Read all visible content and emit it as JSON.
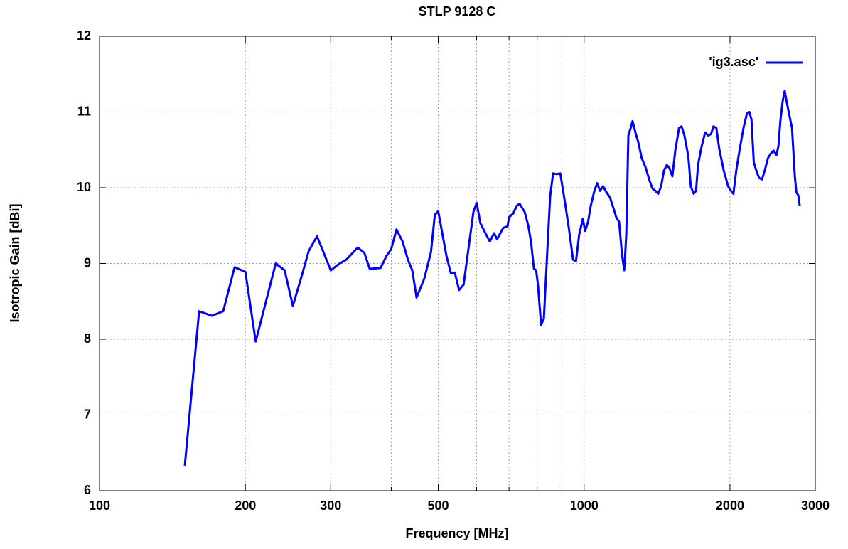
{
  "chart_data": {
    "type": "line",
    "title": "STLP 9128 C",
    "x_label": "Frequency [MHz]",
    "y_label": "Isotropic Gain [dBi]",
    "log_x": true,
    "grid": true,
    "legend": "top-right",
    "xlim": [
      100,
      3000
    ],
    "ylim": [
      6,
      12
    ],
    "xticks": [
      100,
      200,
      300,
      500,
      1000,
      2000,
      3000
    ],
    "minor_xticks": [
      400,
      600,
      700,
      800,
      900
    ],
    "yticks": [
      6,
      7,
      8,
      9,
      10,
      11,
      12
    ],
    "series": [
      {
        "name": "'ig3.asc'",
        "color": "#0000ff",
        "x": [
          150,
          160.5,
          170.5,
          180,
          190,
          200,
          210,
          231,
          241,
          250.6,
          262,
          270,
          281,
          300,
          313,
          323,
          341,
          352,
          361,
          380,
          391,
          400,
          410,
          422,
          433,
          442,
          451,
          468,
          483,
          492,
          500,
          520,
          531,
          541,
          552,
          564,
          591,
          600,
          611,
          628,
          639,
          652,
          661,
          681,
          695,
          700,
          714,
          726,
          736,
          754,
          767,
          777,
          788,
          796,
          803,
          815,
          826,
          840,
          851,
          863,
          877,
          893,
          911,
          930,
          949,
          962,
          977,
          994,
          1005,
          1019,
          1033,
          1050,
          1064,
          1079,
          1094,
          1112,
          1131,
          1146,
          1165,
          1181,
          1197,
          1210,
          1222,
          1234,
          1251,
          1259,
          1276,
          1294,
          1315,
          1339,
          1365,
          1384,
          1403,
          1422,
          1442,
          1462,
          1482,
          1500,
          1521,
          1542,
          1570,
          1589,
          1611,
          1641,
          1660,
          1683,
          1702,
          1718,
          1746,
          1777,
          1803,
          1828,
          1849,
          1875,
          1901,
          1941,
          1982,
          2009,
          2033,
          2061,
          2097,
          2133,
          2168,
          2193,
          2215,
          2239,
          2266,
          2297,
          2329,
          2362,
          2395,
          2427,
          2460,
          2494,
          2518,
          2541,
          2570,
          2594,
          2612,
          2648,
          2685,
          2722,
          2741,
          2767,
          2786
        ],
        "values": [
          6.33,
          8.37,
          8.31,
          8.37,
          8.95,
          8.89,
          7.97,
          9.0,
          8.91,
          8.44,
          8.86,
          9.16,
          9.36,
          8.91,
          9.0,
          9.05,
          9.21,
          9.14,
          8.93,
          8.94,
          9.1,
          9.19,
          9.45,
          9.29,
          9.05,
          8.91,
          8.55,
          8.8,
          9.15,
          9.64,
          9.69,
          9.1,
          8.87,
          8.88,
          8.65,
          8.72,
          9.68,
          9.8,
          9.53,
          9.38,
          9.29,
          9.4,
          9.32,
          9.47,
          9.49,
          9.61,
          9.66,
          9.76,
          9.79,
          9.68,
          9.5,
          9.29,
          8.93,
          8.91,
          8.72,
          8.19,
          8.27,
          9.19,
          9.89,
          10.19,
          10.18,
          10.19,
          9.85,
          9.47,
          9.05,
          9.03,
          9.38,
          9.59,
          9.43,
          9.55,
          9.77,
          9.96,
          10.06,
          9.96,
          10.02,
          9.94,
          9.87,
          9.76,
          9.61,
          9.55,
          9.12,
          8.91,
          9.38,
          10.69,
          10.81,
          10.88,
          10.73,
          10.6,
          10.39,
          10.27,
          10.09,
          9.99,
          9.96,
          9.92,
          10.02,
          10.23,
          10.3,
          10.26,
          10.15,
          10.49,
          10.79,
          10.81,
          10.69,
          10.41,
          10.02,
          9.92,
          9.96,
          10.3,
          10.53,
          10.73,
          10.69,
          10.71,
          10.81,
          10.79,
          10.51,
          10.23,
          10.02,
          9.96,
          9.92,
          10.23,
          10.53,
          10.79,
          10.98,
          11.0,
          10.9,
          10.34,
          10.23,
          10.13,
          10.11,
          10.24,
          10.39,
          10.45,
          10.49,
          10.43,
          10.55,
          10.88,
          11.15,
          11.28,
          11.17,
          10.98,
          10.79,
          10.15,
          9.94,
          9.9,
          9.76
        ]
      }
    ]
  }
}
